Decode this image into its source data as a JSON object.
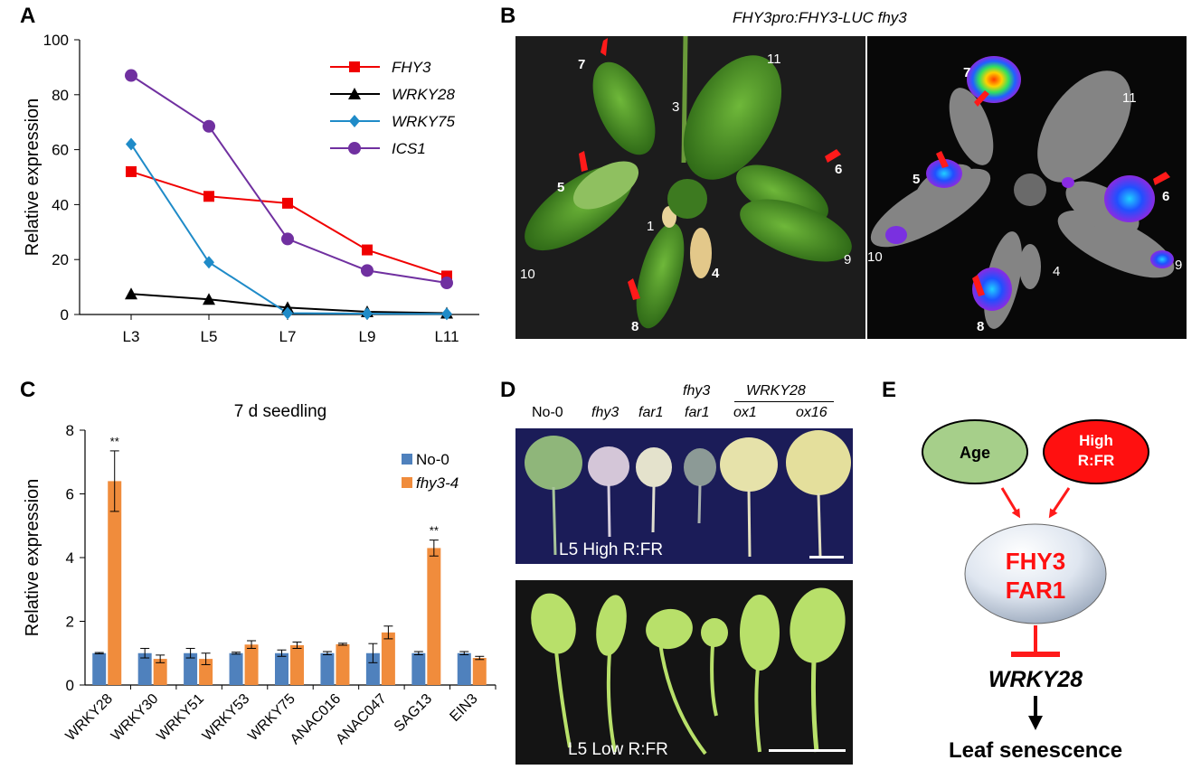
{
  "panels": {
    "A": "A",
    "B": "B",
    "C": "C",
    "D": "D",
    "E": "E"
  },
  "chart_data": [
    {
      "type": "line",
      "panel": "A",
      "title": "",
      "xlabel": "",
      "ylabel": "Relative expression",
      "categories": [
        "L3",
        "L5",
        "L7",
        "L9",
        "L11"
      ],
      "ylim": [
        0,
        100
      ],
      "yticks": [
        0,
        20,
        40,
        60,
        80,
        100
      ],
      "legend_position": "top-right",
      "series": [
        {
          "name": "FHY3",
          "color": "#f00000",
          "marker": "square",
          "values": [
            52,
            43,
            40.5,
            23.5,
            14
          ]
        },
        {
          "name": "WRKY28",
          "color": "#000000",
          "marker": "triangle",
          "values": [
            7.5,
            5.5,
            2.5,
            1,
            0.5
          ]
        },
        {
          "name": "WRKY75",
          "color": "#1f8bc8",
          "marker": "diamond",
          "values": [
            62,
            19,
            0.5,
            0.3,
            0.2
          ]
        },
        {
          "name": "ICS1",
          "color": "#7030a0",
          "marker": "circle",
          "values": [
            87,
            68.5,
            27.5,
            16,
            11.5
          ]
        }
      ]
    },
    {
      "type": "bar",
      "panel": "C",
      "title": "7 d seedling",
      "xlabel": "",
      "ylabel": "Relative expression",
      "categories": [
        "WRKY28",
        "WRKY30",
        "WRKY51",
        "WRKY53",
        "WRKY75",
        "ANAC016",
        "ANAC047",
        "SAG13",
        "EIN3"
      ],
      "ylim": [
        0,
        8
      ],
      "yticks": [
        0,
        2,
        4,
        6,
        8
      ],
      "legend_position": "top-right",
      "significance": [
        "**",
        "",
        "",
        "",
        "",
        "",
        "",
        "**",
        ""
      ],
      "series": [
        {
          "name": "No-0",
          "color": "#4f81bd",
          "values": [
            1,
            1,
            1,
            1,
            1,
            1,
            1,
            1,
            1
          ],
          "errors": [
            0.02,
            0.15,
            0.15,
            0.03,
            0.1,
            0.05,
            0.3,
            0.05,
            0.05
          ]
        },
        {
          "name": "fhy3-4",
          "color": "#f08c3c",
          "values": [
            6.4,
            0.82,
            0.82,
            1.27,
            1.25,
            1.28,
            1.65,
            4.3,
            0.85
          ],
          "errors": [
            0.95,
            0.12,
            0.18,
            0.12,
            0.1,
            0.03,
            0.2,
            0.25,
            0.05
          ]
        }
      ]
    }
  ],
  "panelB": {
    "title": "FHY3pro:FHY3-LUC  fhy3",
    "left_labels": [
      "7",
      "11",
      "3",
      "5",
      "6",
      "1",
      "10",
      "4",
      "9",
      "8"
    ],
    "right_labels": [
      "7",
      "11",
      "5",
      "6",
      "10",
      "4",
      "9",
      "8"
    ]
  },
  "panelD": {
    "genotypes": [
      "No-0",
      "fhy3",
      "far1",
      "fhy3",
      "far1",
      "WRKY28",
      "ox1",
      "ox16"
    ],
    "top_label": "L5 High R:FR",
    "bottom_label": "L5 Low R:FR"
  },
  "panelE": {
    "age": "Age",
    "high1": "High",
    "high2": "R:FR",
    "fhy3": "FHY3",
    "far1": "FAR1",
    "wrky28": "WRKY28",
    "outcome": "Leaf senescence"
  }
}
